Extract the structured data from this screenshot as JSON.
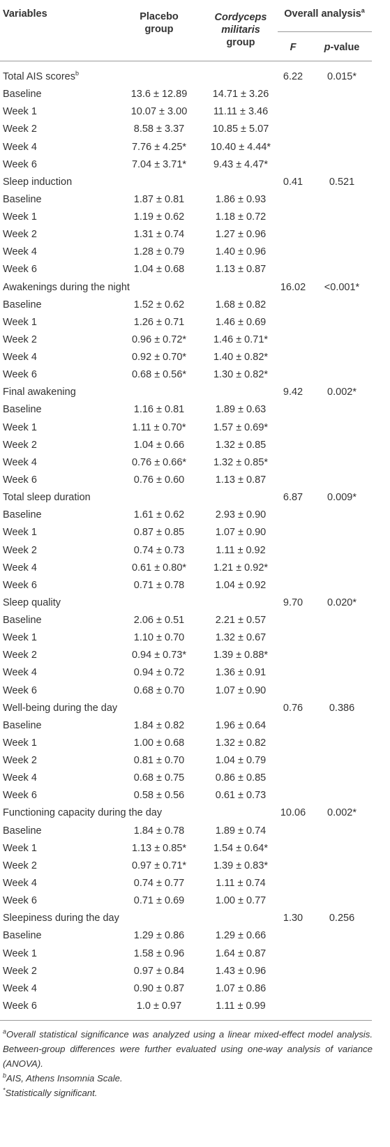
{
  "header": {
    "variables": "Variables",
    "placebo": "Placebo group",
    "cordyceps_species": "Cordyceps militaris",
    "cordyceps_group": "group",
    "overall": "Overall analysis",
    "overall_sup": "a",
    "f": "F",
    "p_italic": "p",
    "p_rest": "-value"
  },
  "groups": [
    {
      "name": "Total AIS scores",
      "name_sup": "b",
      "f": "6.22",
      "p": "0.015*",
      "rows": [
        [
          "Baseline",
          "13.6 ± 12.89",
          "14.71 ± 3.26"
        ],
        [
          "Week 1",
          "10.07 ± 3.00",
          "11.11 ± 3.46"
        ],
        [
          "Week 2",
          "8.58 ± 3.37",
          "10.85 ± 5.07"
        ],
        [
          "Week 4",
          "7.76 ± 4.25*",
          "10.40 ± 4.44*"
        ],
        [
          "Week 6",
          "7.04 ± 3.71*",
          "9.43 ± 4.47*"
        ]
      ]
    },
    {
      "name": "Sleep induction",
      "f": "0.41",
      "p": "0.521",
      "rows": [
        [
          "Baseline",
          "1.87 ± 0.81",
          "1.86 ± 0.93"
        ],
        [
          "Week 1",
          "1.19 ± 0.62",
          "1.18 ± 0.72"
        ],
        [
          "Week 2",
          "1.31 ± 0.74",
          "1.27 ± 0.96"
        ],
        [
          "Week 4",
          "1.28 ± 0.79",
          "1.40 ± 0.96"
        ],
        [
          "Week 6",
          "1.04 ± 0.68",
          "1.13 ± 0.87"
        ]
      ]
    },
    {
      "name": "Awakenings during the night",
      "f": "16.02",
      "p": "<0.001*",
      "rows": [
        [
          "Baseline",
          "1.52 ± 0.62",
          "1.68 ± 0.82"
        ],
        [
          "Week 1",
          "1.26 ± 0.71",
          "1.46 ± 0.69"
        ],
        [
          "Week 2",
          "0.96 ± 0.72*",
          "1.46 ± 0.71*"
        ],
        [
          "Week 4",
          "0.92 ± 0.70*",
          "1.40 ± 0.82*"
        ],
        [
          "Week 6",
          "0.68 ± 0.56*",
          "1.30 ± 0.82*"
        ]
      ]
    },
    {
      "name": "Final awakening",
      "f": "9.42",
      "p": "0.002*",
      "rows": [
        [
          "Baseline",
          "1.16 ± 0.81",
          "1.89 ± 0.63"
        ],
        [
          "Week 1",
          "1.11 ± 0.70*",
          "1.57 ± 0.69*"
        ],
        [
          "Week 2",
          "1.04 ± 0.66",
          "1.32 ± 0.85"
        ],
        [
          "Week 4",
          "0.76 ± 0.66*",
          "1.32 ± 0.85*"
        ],
        [
          "Week 6",
          "0.76 ± 0.60",
          "1.13 ± 0.87"
        ]
      ]
    },
    {
      "name": "Total sleep duration",
      "f": "6.87",
      "p": "0.009*",
      "rows": [
        [
          "Baseline",
          "1.61 ± 0.62",
          "2.93 ± 0.90"
        ],
        [
          "Week 1",
          "0.87 ± 0.85",
          "1.07 ± 0.90"
        ],
        [
          "Week 2",
          "0.74 ± 0.73",
          "1.11 ± 0.92"
        ],
        [
          "Week 4",
          "0.61 ± 0.80*",
          "1.21 ± 0.92*"
        ],
        [
          "Week 6",
          "0.71 ± 0.78",
          "1.04 ± 0.92"
        ]
      ]
    },
    {
      "name": "Sleep quality",
      "f": "9.70",
      "p": "0.020*",
      "rows": [
        [
          "Baseline",
          "2.06 ± 0.51",
          "2.21 ± 0.57"
        ],
        [
          "Week 1",
          "1.10 ± 0.70",
          "1.32 ± 0.67"
        ],
        [
          "Week 2",
          "0.94 ± 0.73*",
          "1.39 ± 0.88*"
        ],
        [
          "Week 4",
          "0.94 ± 0.72",
          "1.36 ± 0.91"
        ],
        [
          "Week 6",
          "0.68 ± 0.70",
          "1.07 ± 0.90"
        ]
      ]
    },
    {
      "name": "Well-being during the day",
      "f": "0.76",
      "p": "0.386",
      "rows": [
        [
          "Baseline",
          "1.84 ± 0.82",
          "1.96 ± 0.64"
        ],
        [
          "Week 1",
          "1.00 ± 0.68",
          "1.32 ± 0.82"
        ],
        [
          "Week 2",
          "0.81 ± 0.70",
          "1.04 ± 0.79"
        ],
        [
          "Week 4",
          "0.68 ± 0.75",
          "0.86 ± 0.85"
        ],
        [
          "Week 6",
          "0.58 ± 0.56",
          "0.61 ± 0.73"
        ]
      ]
    },
    {
      "name": "Functioning capacity during the day",
      "f": "10.06",
      "p": "0.002*",
      "rows": [
        [
          "Baseline",
          "1.84 ± 0.78",
          "1.89 ± 0.74"
        ],
        [
          "Week 1",
          "1.13 ± 0.85*",
          "1.54 ± 0.64*"
        ],
        [
          "Week 2",
          "0.97 ± 0.71*",
          "1.39 ± 0.83*"
        ],
        [
          "Week 4",
          "0.74 ± 0.77",
          "1.11 ± 0.74"
        ],
        [
          "Week 6",
          "0.71 ± 0.69",
          "1.00 ± 0.77"
        ]
      ]
    },
    {
      "name": "Sleepiness during the day",
      "f": "1.30",
      "p": "0.256",
      "rows": [
        [
          "Baseline",
          "1.29 ± 0.86",
          "1.29 ± 0.66"
        ],
        [
          "Week 1",
          "1.58 ± 0.96",
          "1.64 ± 0.87"
        ],
        [
          "Week 2",
          "0.97 ± 0.84",
          "1.43 ± 0.96"
        ],
        [
          "Week 4",
          "0.90 ± 0.87",
          "1.07 ± 0.86"
        ],
        [
          "Week 6",
          "1.0 ± 0.97",
          "1.11 ± 0.99"
        ]
      ]
    }
  ],
  "footnotes": [
    {
      "mark": "a",
      "text": "Overall statistical significance was analyzed using a linear mixed-effect model analysis. Between-group differences were further evaluated using one-way analysis of variance (ANOVA)."
    },
    {
      "mark": "b",
      "text": "AIS, Athens Insomnia Scale."
    },
    {
      "mark": "*",
      "text": "Statistically significant."
    }
  ]
}
